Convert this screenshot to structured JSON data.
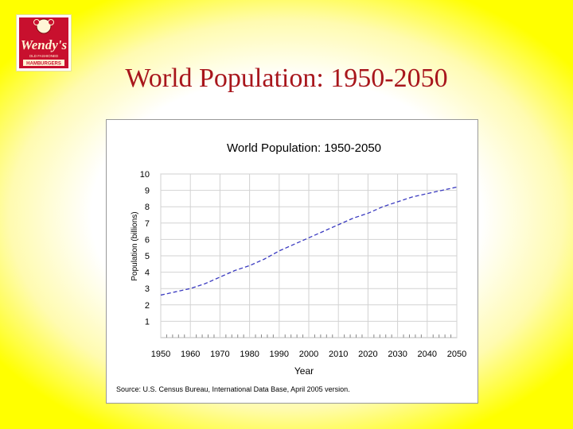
{
  "slide": {
    "title": "World Population:  1950-2050"
  },
  "logo": {
    "brand": "Wendy's",
    "tagline": "OLD FASHIONED",
    "product": "HAMBURGERS",
    "colors": {
      "red": "#c8102e",
      "cream": "#fff5d6"
    }
  },
  "chart_data": {
    "type": "line",
    "title": "World Population: 1950-2050",
    "xlabel": "Year",
    "ylabel": "Population (billions)",
    "source": "Source: U.S. Census Bureau, International Data Base, April 2005 version.",
    "x_ticks": [
      1950,
      1960,
      1970,
      1980,
      1990,
      2000,
      2010,
      2020,
      2030,
      2040,
      2050
    ],
    "y_ticks": [
      1,
      2,
      3,
      4,
      5,
      6,
      7,
      8,
      9,
      10
    ],
    "xlim": [
      1950,
      2050
    ],
    "ylim": [
      0,
      10
    ],
    "grid": true,
    "line_color": "#3a3ac0",
    "line_style": "dashed",
    "series": [
      {
        "x": [
          1950,
          1955,
          1960,
          1965,
          1970,
          1975,
          1980,
          1985,
          1990,
          1995,
          2000,
          2005,
          2010,
          2015,
          2020,
          2025,
          2030,
          2035,
          2040,
          2045,
          2050
        ],
        "values": [
          2.6,
          2.8,
          3.0,
          3.3,
          3.7,
          4.1,
          4.4,
          4.8,
          5.3,
          5.7,
          6.1,
          6.5,
          6.9,
          7.3,
          7.6,
          8.0,
          8.3,
          8.6,
          8.8,
          9.0,
          9.2
        ]
      }
    ]
  }
}
